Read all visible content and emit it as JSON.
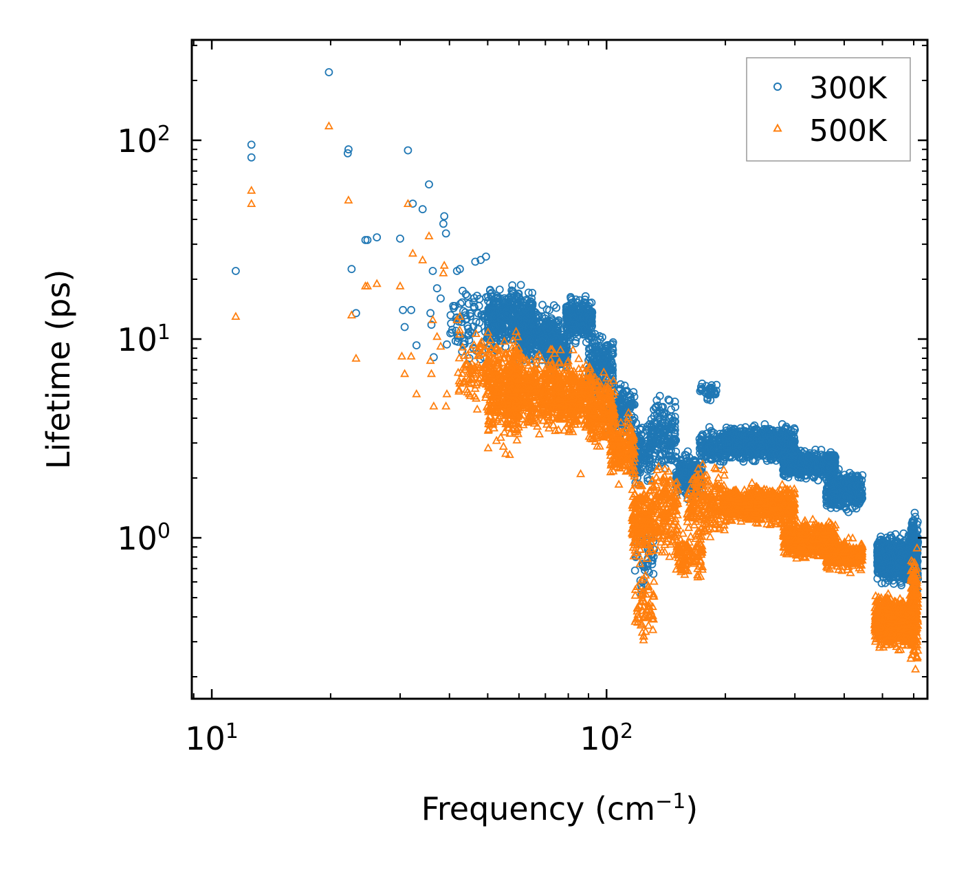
{
  "chart_data": {
    "type": "scatter",
    "title": "",
    "xlabel": "Frequency (cm",
    "xlabel_sup": "−1",
    "xlabel_end": ")",
    "ylabel": "Lifetime (ps)",
    "xscale": "log",
    "yscale": "log",
    "xlim": [
      8.9,
      650
    ],
    "ylim": [
      0.155,
      320
    ],
    "xticks": [
      {
        "value": 10,
        "base": "10",
        "exp": "1"
      },
      {
        "value": 100,
        "base": "10",
        "exp": "2"
      }
    ],
    "yticks": [
      {
        "value": 1,
        "base": "10",
        "exp": "0"
      },
      {
        "value": 10,
        "base": "10",
        "exp": "1"
      },
      {
        "value": 100,
        "base": "10",
        "exp": "2"
      }
    ],
    "legend": {
      "position": "top-right"
    },
    "series": [
      {
        "name": "300K",
        "marker": "circle",
        "color": "#1f77b4",
        "points": [
          [
            11.5,
            22
          ],
          [
            12.6,
            95
          ],
          [
            12.6,
            82
          ],
          [
            19.8,
            220
          ],
          [
            22.2,
            90
          ],
          [
            22.1,
            86
          ],
          [
            22.6,
            22.5
          ],
          [
            23.2,
            13.5
          ],
          [
            24.5,
            31.5
          ],
          [
            24.8,
            31.5
          ],
          [
            26.2,
            32.5
          ],
          [
            30.0,
            32
          ],
          [
            30.5,
            14
          ],
          [
            30.8,
            11.5
          ],
          [
            31.4,
            89
          ],
          [
            32.0,
            14
          ],
          [
            32.3,
            48
          ],
          [
            33.0,
            9.3
          ],
          [
            34.2,
            45
          ],
          [
            35.5,
            60
          ],
          [
            35.8,
            13.5
          ],
          [
            36.0,
            11.8
          ],
          [
            36.3,
            22
          ],
          [
            36.5,
            8.1
          ],
          [
            37.2,
            18
          ],
          [
            38.0,
            16
          ],
          [
            38.6,
            38
          ],
          [
            38.8,
            41.5
          ],
          [
            39.2,
            34
          ],
          [
            39.4,
            9.4
          ],
          [
            41.8,
            22
          ],
          [
            42.5,
            22.5
          ],
          [
            43.2,
            17.5
          ],
          [
            44.0,
            16.8
          ],
          [
            46.5,
            24.5
          ],
          [
            48.0,
            25
          ],
          [
            49.5,
            26
          ]
        ],
        "clusters": [
          {
            "x": [
              40,
              53
            ],
            "y": [
              7,
              20
            ],
            "n": 90
          },
          {
            "x": [
              50,
              65
            ],
            "y": [
              8,
              20
            ],
            "n": 380
          },
          {
            "x": [
              60,
              76
            ],
            "y": [
              7,
              16
            ],
            "n": 300
          },
          {
            "x": [
              70,
              80
            ],
            "y": [
              6.5,
              12
            ],
            "n": 120
          },
          {
            "x": [
              79,
              92
            ],
            "y": [
              9,
              17
            ],
            "n": 280
          },
          {
            "x": [
              90,
              104
            ],
            "y": [
              5,
              11.5
            ],
            "n": 180
          },
          {
            "x": [
              100,
              118
            ],
            "y": [
              3,
              6.5
            ],
            "n": 130
          },
          {
            "x": [
              115,
              130
            ],
            "y": [
              1.6,
              4.5
            ],
            "n": 150
          },
          {
            "x": [
              118,
              132
            ],
            "y": [
              0.5,
              1.5
            ],
            "n": 50
          },
          {
            "x": [
              128,
              150
            ],
            "y": [
              2,
              5.5
            ],
            "n": 160
          },
          {
            "x": [
              150,
              175
            ],
            "y": [
              1.4,
              3.0
            ],
            "n": 180
          },
          {
            "x": [
              172,
              190
            ],
            "y": [
              4.8,
              6.3
            ],
            "n": 30
          },
          {
            "x": [
              172,
              200
            ],
            "y": [
              2.2,
              3.7
            ],
            "n": 160
          },
          {
            "x": [
              200,
              300
            ],
            "y": [
              2.3,
              3.9
            ],
            "n": 650
          },
          {
            "x": [
              280,
              380
            ],
            "y": [
              1.9,
              2.9
            ],
            "n": 500
          },
          {
            "x": [
              360,
              445
            ],
            "y": [
              1.3,
              2.3
            ],
            "n": 320
          },
          {
            "x": [
              485,
              600
            ],
            "y": [
              0.55,
              1.1
            ],
            "n": 750
          },
          {
            "x": [
              590,
              615
            ],
            "y": [
              0.45,
              1.55
            ],
            "n": 180
          }
        ]
      },
      {
        "name": "500K",
        "marker": "triangle",
        "color": "#ff7f0e",
        "points": [
          [
            11.5,
            13
          ],
          [
            12.6,
            56
          ],
          [
            12.6,
            48
          ],
          [
            19.8,
            118
          ],
          [
            22.2,
            50
          ],
          [
            22.6,
            13.2
          ],
          [
            23.2,
            8
          ],
          [
            24.5,
            18.5
          ],
          [
            24.8,
            18.5
          ],
          [
            26.2,
            19
          ],
          [
            30.0,
            18.5
          ],
          [
            30.3,
            8.2
          ],
          [
            30.8,
            6.7
          ],
          [
            31.4,
            48
          ],
          [
            32.0,
            8.2
          ],
          [
            32.3,
            27
          ],
          [
            33.0,
            5.3
          ],
          [
            34.2,
            25
          ],
          [
            35.5,
            33
          ],
          [
            35.8,
            7.8
          ],
          [
            36.0,
            6.7
          ],
          [
            36.3,
            12.5
          ],
          [
            36.5,
            4.6
          ],
          [
            37.2,
            10.3
          ],
          [
            38.0,
            9.2
          ],
          [
            38.6,
            21.5
          ],
          [
            38.8,
            23.5
          ],
          [
            39.2,
            4.6
          ],
          [
            39.4,
            5.3
          ],
          [
            41.8,
            12.5
          ],
          [
            42.5,
            13
          ],
          [
            86,
            2.1
          ]
        ],
        "clusters": [
          {
            "x": [
              42,
              53
            ],
            "y": [
              4,
              12
            ],
            "n": 110
          },
          {
            "x": [
              50,
              60
            ],
            "y": [
              2.5,
              12
            ],
            "n": 320
          },
          {
            "x": [
              56,
              76
            ],
            "y": [
              3,
              10
            ],
            "n": 480
          },
          {
            "x": [
              74,
              92
            ],
            "y": [
              3,
              9
            ],
            "n": 360
          },
          {
            "x": [
              90,
              105
            ],
            "y": [
              2.6,
              7.5
            ],
            "n": 220
          },
          {
            "x": [
              102,
              118
            ],
            "y": [
              1.7,
              4.5
            ],
            "n": 180
          },
          {
            "x": [
              116,
              130
            ],
            "y": [
              0.7,
              2.1
            ],
            "n": 200
          },
          {
            "x": [
              118,
              132
            ],
            "y": [
              0.27,
              0.75
            ],
            "n": 60
          },
          {
            "x": [
              130,
              152
            ],
            "y": [
              0.7,
              2.6
            ],
            "n": 190
          },
          {
            "x": [
              150,
              175
            ],
            "y": [
              0.55,
              1.2
            ],
            "n": 120
          },
          {
            "x": [
              160,
              200
            ],
            "y": [
              0.9,
              2.5
            ],
            "n": 220
          },
          {
            "x": [
              200,
              300
            ],
            "y": [
              1.1,
              1.95
            ],
            "n": 650
          },
          {
            "x": [
              280,
              380
            ],
            "y": [
              0.75,
              1.3
            ],
            "n": 480
          },
          {
            "x": [
              360,
              445
            ],
            "y": [
              0.65,
              1.05
            ],
            "n": 280
          },
          {
            "x": [
              478,
              600
            ],
            "y": [
              0.26,
              0.55
            ],
            "n": 780
          },
          {
            "x": [
              590,
              615
            ],
            "y": [
              0.18,
              1.05
            ],
            "n": 200
          }
        ]
      }
    ]
  }
}
